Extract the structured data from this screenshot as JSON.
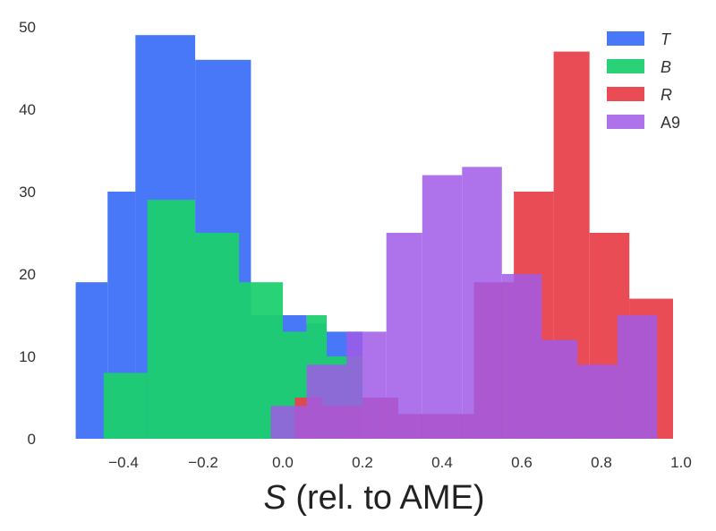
{
  "chart_data": {
    "type": "bar",
    "subtype": "overlaid-histogram",
    "xlabel_symbol": "S",
    "xlabel_rest": " (rel. to AME)",
    "xlim": [
      -0.53,
      1.0
    ],
    "ylim": [
      0,
      50
    ],
    "xticks": [
      -0.4,
      -0.2,
      0.0,
      0.2,
      0.4,
      0.6,
      0.8,
      1.0
    ],
    "xtick_labels": [
      "−0.4",
      "−0.2",
      "0.0",
      "0.2",
      "0.4",
      "0.6",
      "0.8",
      "1.0"
    ],
    "yticks": [
      0,
      10,
      20,
      30,
      40,
      50
    ],
    "ytick_labels": [
      "0",
      "10",
      "20",
      "30",
      "40",
      "50"
    ],
    "grid": false,
    "legend_position": "top-right",
    "series": [
      {
        "name": "T",
        "italic": true,
        "color": "#4878f8",
        "opacity": 1.0,
        "edges": [
          -0.52,
          -0.44,
          -0.37,
          -0.22,
          -0.08,
          0.06,
          0.11,
          0.2
        ],
        "counts": [
          19,
          30,
          49,
          46,
          15,
          14,
          13
        ]
      },
      {
        "name": "B",
        "italic": true,
        "color": "#1ecf70",
        "opacity": 0.95,
        "edges": [
          -0.45,
          -0.34,
          -0.22,
          -0.11,
          0.0,
          0.06,
          0.11,
          0.2
        ],
        "counts": [
          8,
          29,
          25,
          19,
          13,
          15,
          10
        ]
      },
      {
        "name": "R",
        "italic": true,
        "color": "#e8424c",
        "opacity": 0.95,
        "edges": [
          -0.03,
          0.03,
          0.1,
          0.2,
          0.29,
          0.39,
          0.48,
          0.58,
          0.68,
          0.77,
          0.87,
          0.98
        ],
        "counts": [
          0,
          5,
          4,
          5,
          3,
          3,
          19,
          30,
          47,
          25,
          17
        ]
      },
      {
        "name": "A9",
        "italic": false,
        "color": "#a05ae8",
        "opacity": 0.85,
        "edges": [
          -0.03,
          0.06,
          0.16,
          0.26,
          0.35,
          0.45,
          0.55,
          0.65,
          0.74,
          0.84,
          0.94
        ],
        "counts": [
          4,
          9,
          13,
          25,
          32,
          33,
          20,
          12,
          9,
          15
        ]
      }
    ]
  }
}
